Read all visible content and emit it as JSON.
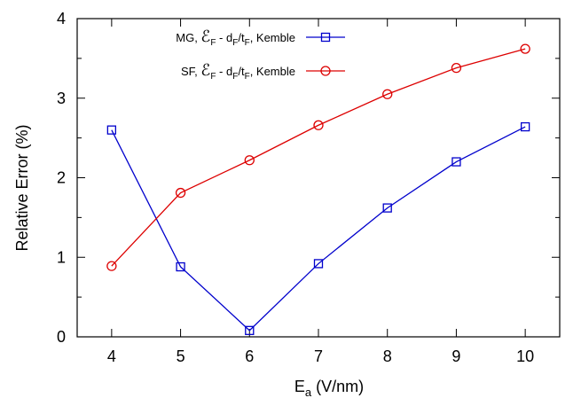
{
  "chart_data": {
    "type": "line",
    "xlabel_main": "E",
    "xlabel_sub": "a",
    "xlabel_unit": " (V/nm)",
    "ylabel": "Relative Error (%)",
    "x": [
      4,
      5,
      6,
      7,
      8,
      9,
      10
    ],
    "xlim": [
      3.5,
      10.5
    ],
    "ylim": [
      0,
      4
    ],
    "x_ticks": [
      "4",
      "5",
      "6",
      "7",
      "8",
      "9",
      "10"
    ],
    "y_ticks": [
      "0",
      "1",
      "2",
      "3",
      "4"
    ],
    "grid": false,
    "legend_position": "top-left",
    "series": [
      {
        "key": "mg",
        "legend_pre": "MG, ",
        "legend_symbol": "ℰ",
        "legend_symbol_sub": "F",
        "legend_mid": " - d",
        "legend_d_sub": "F",
        "legend_slash": "/t",
        "legend_t_sub": "F",
        "legend_post": ", Kemble",
        "marker": "square",
        "color": "#0000cc",
        "values": [
          2.6,
          0.88,
          0.08,
          0.92,
          1.62,
          2.2,
          2.64
        ]
      },
      {
        "key": "sf",
        "legend_pre": "SF, ",
        "legend_symbol": "ℰ",
        "legend_symbol_sub": "F",
        "legend_mid": " - d",
        "legend_d_sub": "F",
        "legend_slash": "/t",
        "legend_t_sub": "F",
        "legend_post": ", Kemble",
        "marker": "circle",
        "color": "#dd0000",
        "values": [
          0.89,
          1.81,
          2.22,
          2.66,
          3.05,
          3.38,
          3.62
        ]
      }
    ]
  }
}
